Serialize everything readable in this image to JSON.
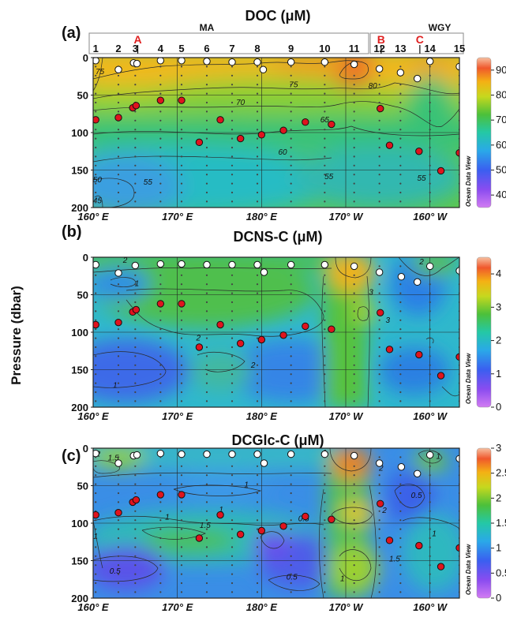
{
  "figure": {
    "ylabel": "Pressure (dbar)",
    "watermark": "Ocean Data View"
  },
  "stations": {
    "labels": [
      "1",
      "2",
      "3",
      "4",
      "5",
      "6",
      "7",
      "8",
      "9",
      "10",
      "11",
      "12",
      "13",
      "14",
      "15"
    ],
    "lon": [
      160.3,
      163.0,
      165.0,
      168.0,
      170.5,
      173.5,
      176.5,
      179.5,
      183.5,
      187.5,
      191.0,
      194.0,
      196.5,
      200.0,
      203.5
    ],
    "regions": [
      {
        "name": "MA",
        "lon_start": 160,
        "lon_end": 194.8
      },
      {
        "name": "WGY",
        "lon_start": 195.2,
        "lon_end": 205
      }
    ],
    "markers": [
      {
        "label": "A",
        "lon": 165.3
      },
      {
        "label": "B",
        "lon": 194.2
      },
      {
        "label": "C",
        "lon": 198.8
      }
    ]
  },
  "chart_data": [
    {
      "type": "heatmap",
      "panel": "(a)",
      "title": "DOC (μM)",
      "x_ticks": [
        "160° E",
        "170° E",
        "180° E",
        "170° W",
        "160° W"
      ],
      "x_tick_lon": [
        160,
        170,
        180,
        190,
        200
      ],
      "y_ticks": [
        "0",
        "50",
        "100",
        "150",
        "200"
      ],
      "xlim": [
        160,
        203.5
      ],
      "ylim": [
        0,
        200
      ],
      "y_inverted": true,
      "colorbar": {
        "ticks": [
          "40",
          "50",
          "60",
          "70",
          "80",
          "90"
        ],
        "range": [
          35,
          95
        ]
      },
      "contour_labels": [
        {
          "text": "75",
          "lon": 160.8,
          "p": 18
        },
        {
          "text": "75",
          "lon": 183.8,
          "p": 35
        },
        {
          "text": "80",
          "lon": 193.2,
          "p": 37
        },
        {
          "text": "70",
          "lon": 177.5,
          "p": 59
        },
        {
          "text": "65",
          "lon": 187.5,
          "p": 82
        },
        {
          "text": "60",
          "lon": 182.5,
          "p": 125
        },
        {
          "text": "55",
          "lon": 166.5,
          "p": 165
        },
        {
          "text": "55",
          "lon": 188.0,
          "p": 158
        },
        {
          "text": "55",
          "lon": 199.0,
          "p": 160
        },
        {
          "text": "50",
          "lon": 160.5,
          "p": 162
        },
        {
          "text": "45",
          "lon": 160.5,
          "p": 190
        }
      ],
      "surface_samples": [
        {
          "lon": 160.3,
          "p": 4
        },
        {
          "lon": 163.0,
          "p": 16
        },
        {
          "lon": 164.8,
          "p": 7
        },
        {
          "lon": 165.2,
          "p": 8
        },
        {
          "lon": 168.0,
          "p": 4
        },
        {
          "lon": 170.5,
          "p": 4
        },
        {
          "lon": 173.5,
          "p": 5
        },
        {
          "lon": 176.5,
          "p": 6
        },
        {
          "lon": 179.5,
          "p": 6
        },
        {
          "lon": 180.2,
          "p": 16
        },
        {
          "lon": 183.5,
          "p": 6
        },
        {
          "lon": 187.5,
          "p": 6
        },
        {
          "lon": 191.0,
          "p": 9
        },
        {
          "lon": 194.0,
          "p": 15
        },
        {
          "lon": 196.5,
          "p": 20
        },
        {
          "lon": 198.5,
          "p": 28
        },
        {
          "lon": 200.0,
          "p": 5
        },
        {
          "lon": 203.5,
          "p": 12
        }
      ],
      "deep_samples": [
        {
          "lon": 160.3,
          "p": 83
        },
        {
          "lon": 163.0,
          "p": 80
        },
        {
          "lon": 164.7,
          "p": 67
        },
        {
          "lon": 165.1,
          "p": 64
        },
        {
          "lon": 168.0,
          "p": 57
        },
        {
          "lon": 170.5,
          "p": 57
        },
        {
          "lon": 172.6,
          "p": 113
        },
        {
          "lon": 175.1,
          "p": 83
        },
        {
          "lon": 177.5,
          "p": 108
        },
        {
          "lon": 180.0,
          "p": 103
        },
        {
          "lon": 182.6,
          "p": 97
        },
        {
          "lon": 185.2,
          "p": 86
        },
        {
          "lon": 188.3,
          "p": 89
        },
        {
          "lon": 194.1,
          "p": 68
        },
        {
          "lon": 195.2,
          "p": 117
        },
        {
          "lon": 198.7,
          "p": 125
        },
        {
          "lon": 201.3,
          "p": 151
        },
        {
          "lon": 203.5,
          "p": 127
        }
      ]
    },
    {
      "type": "heatmap",
      "panel": "(b)",
      "title": "DCNS-C (μM)",
      "x_ticks": [
        "160° E",
        "170° E",
        "180° E",
        "170° W",
        "160° W"
      ],
      "x_tick_lon": [
        160,
        170,
        180,
        190,
        200
      ],
      "y_ticks": [
        "0",
        "50",
        "100",
        "150",
        "200"
      ],
      "xlim": [
        160,
        203.5
      ],
      "ylim": [
        0,
        200
      ],
      "y_inverted": true,
      "colorbar": {
        "ticks": [
          "0",
          "1",
          "2",
          "3",
          "4"
        ],
        "range": [
          0,
          4.5
        ]
      },
      "contour_labels": [
        {
          "text": "2",
          "lon": 163.8,
          "p": 3
        },
        {
          "text": "2",
          "lon": 199.0,
          "p": 5
        },
        {
          "text": "1",
          "lon": 165.2,
          "p": 34
        },
        {
          "text": "3",
          "lon": 193.0,
          "p": 46
        },
        {
          "text": "3",
          "lon": 195.0,
          "p": 83
        },
        {
          "text": "2",
          "lon": 172.5,
          "p": 107
        },
        {
          "text": "2",
          "lon": 179.0,
          "p": 143
        },
        {
          "text": "1",
          "lon": 162.6,
          "p": 170
        }
      ],
      "surface_samples": [
        {
          "lon": 160.3,
          "p": 10
        },
        {
          "lon": 163.0,
          "p": 21
        },
        {
          "lon": 165.0,
          "p": 11
        },
        {
          "lon": 168.0,
          "p": 9
        },
        {
          "lon": 170.5,
          "p": 9
        },
        {
          "lon": 173.5,
          "p": 10
        },
        {
          "lon": 176.5,
          "p": 10
        },
        {
          "lon": 179.5,
          "p": 10
        },
        {
          "lon": 180.3,
          "p": 20
        },
        {
          "lon": 183.5,
          "p": 10
        },
        {
          "lon": 187.5,
          "p": 10
        },
        {
          "lon": 191.0,
          "p": 12
        },
        {
          "lon": 194.0,
          "p": 20
        },
        {
          "lon": 196.6,
          "p": 26
        },
        {
          "lon": 198.5,
          "p": 33
        },
        {
          "lon": 200.0,
          "p": 12
        },
        {
          "lon": 203.5,
          "p": 18
        }
      ],
      "deep_samples": [
        {
          "lon": 160.3,
          "p": 90
        },
        {
          "lon": 163.0,
          "p": 87
        },
        {
          "lon": 164.7,
          "p": 73
        },
        {
          "lon": 165.1,
          "p": 70
        },
        {
          "lon": 168.0,
          "p": 62
        },
        {
          "lon": 170.5,
          "p": 62
        },
        {
          "lon": 172.6,
          "p": 120
        },
        {
          "lon": 175.1,
          "p": 90
        },
        {
          "lon": 177.5,
          "p": 115
        },
        {
          "lon": 180.0,
          "p": 110
        },
        {
          "lon": 182.6,
          "p": 104
        },
        {
          "lon": 185.2,
          "p": 92
        },
        {
          "lon": 188.3,
          "p": 96
        },
        {
          "lon": 194.1,
          "p": 74
        },
        {
          "lon": 195.2,
          "p": 123
        },
        {
          "lon": 198.7,
          "p": 130
        },
        {
          "lon": 201.3,
          "p": 158
        },
        {
          "lon": 203.5,
          "p": 133
        }
      ]
    },
    {
      "type": "heatmap",
      "panel": "(c)",
      "title": "DCGlc-C (μM)",
      "x_ticks": [
        "160° E",
        "170° E",
        "180° E",
        "170° W",
        "160° W"
      ],
      "x_tick_lon": [
        160,
        170,
        180,
        190,
        200
      ],
      "y_ticks": [
        "0",
        "50",
        "100",
        "150",
        "200"
      ],
      "xlim": [
        160,
        203.5
      ],
      "ylim": [
        0,
        200
      ],
      "y_inverted": true,
      "colorbar": {
        "ticks": [
          "0",
          "0.5",
          "1",
          "1.5",
          "2",
          "2.5",
          "3"
        ],
        "range": [
          0,
          3
        ]
      },
      "contour_labels": [
        {
          "text": "2",
          "lon": 160.6,
          "p": 7
        },
        {
          "text": "1.5",
          "lon": 162.4,
          "p": 12
        },
        {
          "text": "1",
          "lon": 201.0,
          "p": 10
        },
        {
          "text": "2",
          "lon": 194.2,
          "p": 26
        },
        {
          "text": "1",
          "lon": 187.5,
          "p": 5
        },
        {
          "text": "1",
          "lon": 178.2,
          "p": 48
        },
        {
          "text": "0.5",
          "lon": 198.4,
          "p": 62
        },
        {
          "text": "1",
          "lon": 175.2,
          "p": 81
        },
        {
          "text": "2",
          "lon": 194.6,
          "p": 82
        },
        {
          "text": "1",
          "lon": 168.8,
          "p": 91
        },
        {
          "text": "1.5",
          "lon": 173.3,
          "p": 102
        },
        {
          "text": "0.5",
          "lon": 185.0,
          "p": 93
        },
        {
          "text": "1",
          "lon": 200.5,
          "p": 113
        },
        {
          "text": "1.5",
          "lon": 195.8,
          "p": 147
        },
        {
          "text": "0.5",
          "lon": 162.6,
          "p": 163
        },
        {
          "text": "0.5",
          "lon": 183.6,
          "p": 171
        },
        {
          "text": "1",
          "lon": 189.6,
          "p": 173
        },
        {
          "text": "1",
          "lon": 160.3,
          "p": 117
        }
      ],
      "surface_samples": [
        {
          "lon": 160.3,
          "p": 7
        },
        {
          "lon": 163.0,
          "p": 20
        },
        {
          "lon": 164.8,
          "p": 10
        },
        {
          "lon": 165.2,
          "p": 9
        },
        {
          "lon": 168.0,
          "p": 7
        },
        {
          "lon": 170.5,
          "p": 8
        },
        {
          "lon": 173.5,
          "p": 8
        },
        {
          "lon": 176.5,
          "p": 8
        },
        {
          "lon": 179.5,
          "p": 8
        },
        {
          "lon": 180.3,
          "p": 20
        },
        {
          "lon": 183.5,
          "p": 8
        },
        {
          "lon": 187.5,
          "p": 8
        },
        {
          "lon": 191.0,
          "p": 10
        },
        {
          "lon": 194.0,
          "p": 20
        },
        {
          "lon": 196.6,
          "p": 25
        },
        {
          "lon": 198.5,
          "p": 34
        },
        {
          "lon": 200.0,
          "p": 9
        },
        {
          "lon": 203.5,
          "p": 14
        }
      ],
      "deep_samples": [
        {
          "lon": 160.3,
          "p": 89
        },
        {
          "lon": 163.0,
          "p": 86
        },
        {
          "lon": 164.7,
          "p": 72
        },
        {
          "lon": 165.1,
          "p": 69
        },
        {
          "lon": 168.0,
          "p": 62
        },
        {
          "lon": 170.5,
          "p": 62
        },
        {
          "lon": 172.6,
          "p": 120
        },
        {
          "lon": 175.1,
          "p": 89
        },
        {
          "lon": 177.5,
          "p": 115
        },
        {
          "lon": 180.0,
          "p": 110
        },
        {
          "lon": 182.6,
          "p": 104
        },
        {
          "lon": 185.2,
          "p": 91
        },
        {
          "lon": 188.3,
          "p": 95
        },
        {
          "lon": 194.1,
          "p": 74
        },
        {
          "lon": 195.2,
          "p": 123
        },
        {
          "lon": 198.7,
          "p": 130
        },
        {
          "lon": 201.3,
          "p": 158
        },
        {
          "lon": 203.5,
          "p": 133
        }
      ]
    }
  ]
}
